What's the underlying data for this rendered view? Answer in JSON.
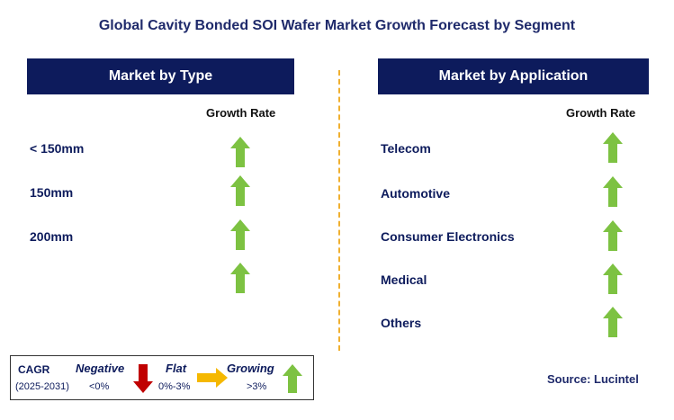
{
  "title": "Global Cavity Bonded SOI Wafer Market Growth Forecast by Segment",
  "left": {
    "header": "Market by Type",
    "col_head": "Growth Rate",
    "rows": [
      "< 150mm",
      "150mm",
      "200mm",
      ""
    ],
    "arrows": [
      "growing",
      "growing",
      "growing",
      "growing"
    ]
  },
  "right": {
    "header": "Market by Application",
    "col_head": "Growth Rate",
    "rows": [
      "Telecom",
      "Automotive",
      "Consumer Electronics",
      "Medical",
      "Others"
    ],
    "arrows": [
      "growing",
      "growing",
      "growing",
      "growing",
      "growing"
    ]
  },
  "legend": {
    "cagr": "CAGR",
    "period": "(2025-2031)",
    "negative": "Negative",
    "negative_range": "<0%",
    "flat": "Flat",
    "flat_range": "0%-3%",
    "growing": "Growing",
    "growing_range": ">3%"
  },
  "source": "Source: Lucintel",
  "colors": {
    "header_bg": "#0d1b5c",
    "growing": "#7dc242",
    "negative": "#c00000",
    "flat": "#f5b800",
    "divider": "#f0b030"
  }
}
